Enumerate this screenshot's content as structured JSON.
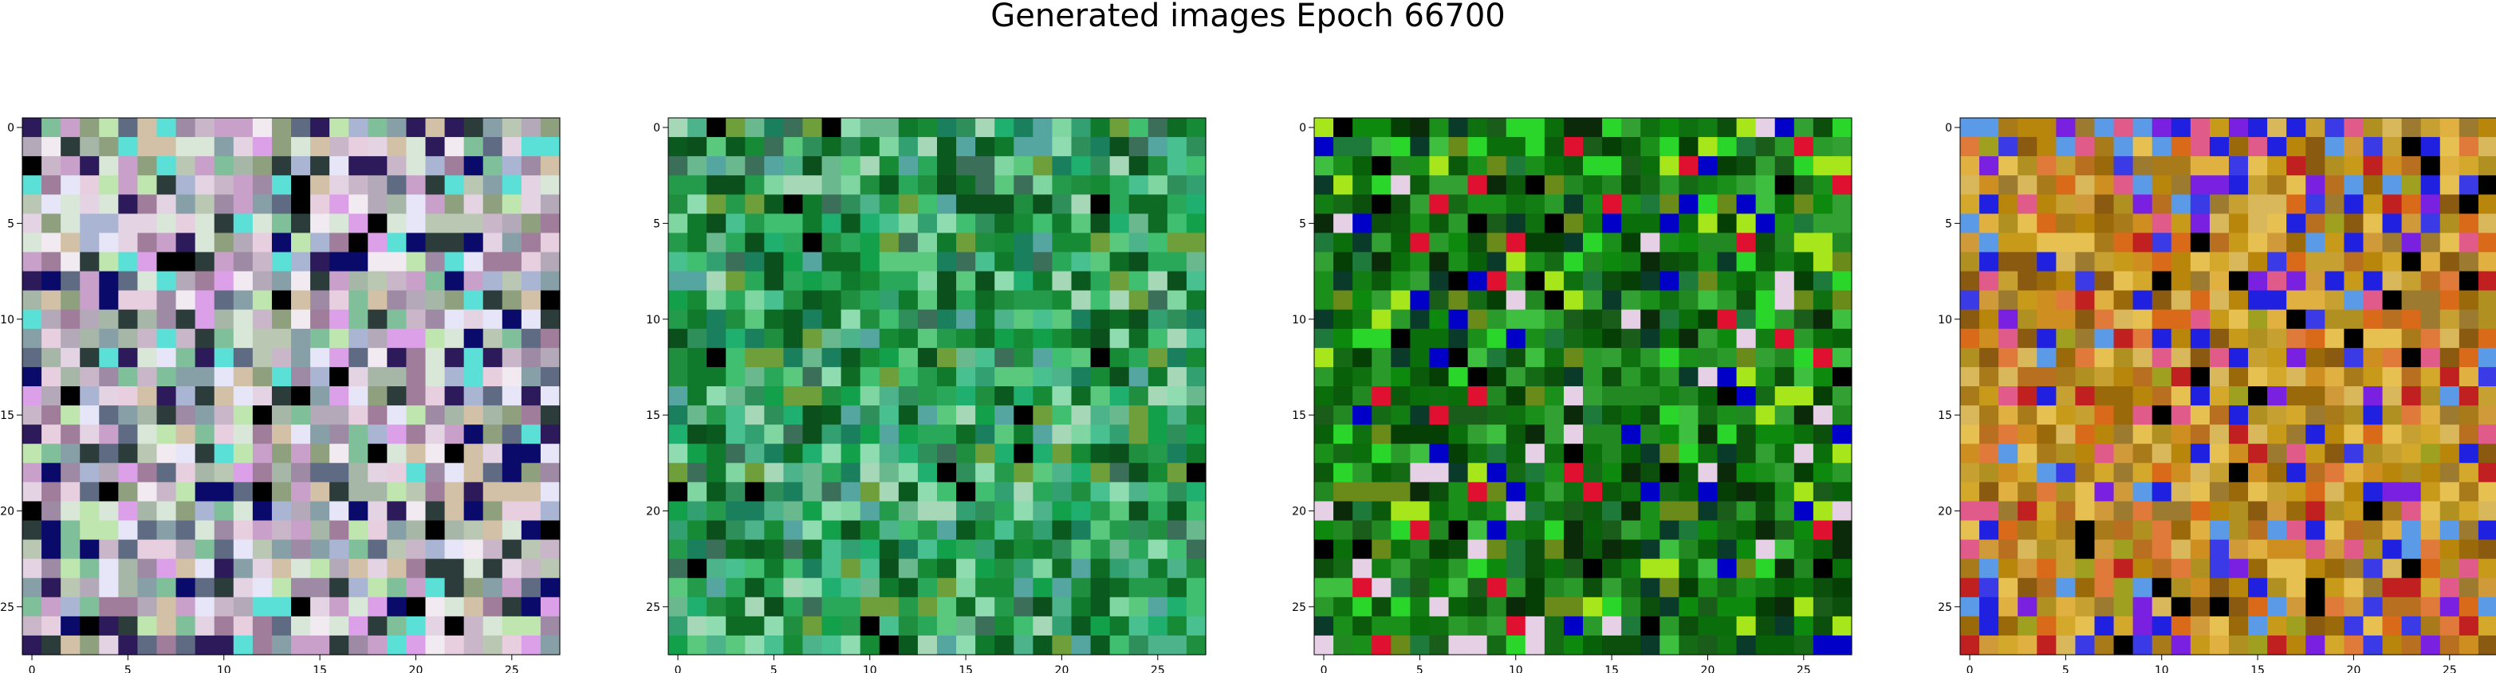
{
  "figure": {
    "title": "Generated images Epoch 66700"
  },
  "chart_data": [
    {
      "type": "heatmap",
      "image_size": 28,
      "x_ticks": [
        0,
        5,
        10,
        15,
        20,
        25
      ],
      "y_ticks": [
        0,
        5,
        10,
        15,
        20,
        25
      ],
      "xlim": [
        -0.5,
        27.5
      ],
      "ylim": [
        27.5,
        -0.5
      ],
      "palette": [
        "#c9b6c9",
        "#b9c7b3",
        "#e3d3e3",
        "#a7b7a7",
        "#d9e7d9",
        "#9f8aa6",
        "#e7cfe0",
        "#b3a9b9",
        "#5f6b83",
        "#d2c1a6",
        "#87a0a8",
        "#f1eaf1",
        "#aab5d4",
        "#c9a0c9",
        "#000000",
        "#2c1a5a",
        "#e6e6f8",
        "#8fa07f",
        "#dca0e8",
        "#5ae0d7",
        "#a07d9a",
        "#c0e6b0",
        "#0a0a6a",
        "#2b3c3a",
        "#7fbf9a"
      ],
      "x_label": "",
      "y_label": ""
    },
    {
      "type": "heatmap",
      "image_size": 28,
      "x_ticks": [
        0,
        5,
        10,
        15,
        20,
        25
      ],
      "y_ticks": [
        0,
        5,
        10,
        15,
        20,
        25
      ],
      "xlim": [
        -0.5,
        27.5
      ],
      "ylim": [
        27.5,
        -0.5
      ],
      "palette": [
        "#2aa85a",
        "#1f8f3f",
        "#3fbf6f",
        "#168a35",
        "#5ac97e",
        "#0f7a2c",
        "#4db38a",
        "#239b4a",
        "#7fd6a0",
        "#0d6b24",
        "#33a072",
        "#1a7f5c",
        "#48c090",
        "#0a5a1f",
        "#6ab88e",
        "#2f8f5a",
        "#12a04a",
        "#a6d8b8",
        "#000000",
        "#3c6f5a",
        "#6f9f3a",
        "#55a6a0",
        "#1fb070",
        "#0b4f1c",
        "#8fdcb0"
      ],
      "x_label": "",
      "y_label": ""
    },
    {
      "type": "heatmap",
      "image_size": 28,
      "x_ticks": [
        0,
        5,
        10,
        15,
        20,
        25
      ],
      "y_ticks": [
        0,
        5,
        10,
        15,
        20,
        25
      ],
      "xlim": [
        -0.5,
        27.5
      ],
      "ylim": [
        27.5,
        -0.5
      ],
      "palette": [
        "#0a6e0a",
        "#127d12",
        "#0b5a0b",
        "#1a8f1a",
        "#086008",
        "#2a9a2a",
        "#0f7010",
        "#156a15",
        "#053f05",
        "#228822",
        "#1e7a3a",
        "#0c4e0c",
        "#33a033",
        "#000000",
        "#0a2a0a",
        "#2bd62b",
        "#e01030",
        "#e6d0e6",
        "#0000c8",
        "#a6e61a",
        "#0a3a2a",
        "#6a8a1a",
        "#1a5c1a",
        "#0d8a0d",
        "#3fbf3f"
      ],
      "x_label": "",
      "y_label": ""
    },
    {
      "type": "heatmap",
      "image_size": 28,
      "x_ticks": [
        0,
        5,
        10,
        15,
        20,
        25
      ],
      "y_ticks": [
        0,
        5,
        10,
        15,
        20,
        25
      ],
      "xlim": [
        -0.5,
        27.5
      ],
      "ylim": [
        27.5,
        -0.5
      ],
      "palette": [
        "#c79a1a",
        "#d4a82a",
        "#b8860b",
        "#a87a1a",
        "#e0b040",
        "#9a6a0a",
        "#cf8f20",
        "#b87020",
        "#d8b85a",
        "#8a5a10",
        "#c6a030",
        "#e6c050",
        "#b09020",
        "#9c7a30",
        "#d09a3a",
        "#2020e0",
        "#3a3ae6",
        "#7a20e0",
        "#c02020",
        "#e05a8a",
        "#5a9ae6",
        "#000000",
        "#d86a1a",
        "#a0a020",
        "#e07a3a"
      ],
      "x_label": "",
      "y_label": ""
    }
  ]
}
